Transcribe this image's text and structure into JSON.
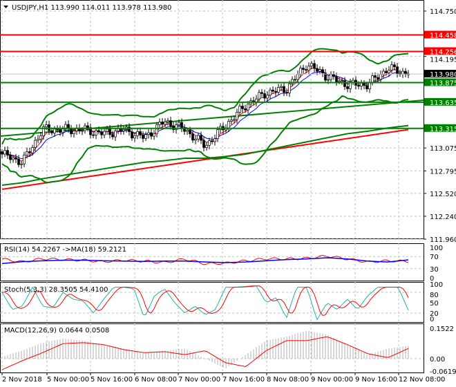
{
  "header": {
    "symbol": "USDJPY,H1",
    "ohlc": "113.990 114.011 113.978 113.980"
  },
  "chart_data": [
    {
      "type": "candlestick",
      "title": "USDJPY,H1",
      "ylim": [
        111.96,
        114.75
      ],
      "y_ticks": [
        "114.750",
        "114.195",
        "113.075",
        "112.795",
        "112.520",
        "112.240",
        "111.960"
      ],
      "x_ticks": [
        "2 Nov 2018",
        "5 Nov 00:00",
        "5 Nov 16:00",
        "6 Nov 08:00",
        "7 Nov 00:00",
        "7 Nov 16:00",
        "8 Nov 08:00",
        "9 Nov 00:00",
        "9 Nov 16:00",
        "12 Nov 08:00"
      ],
      "close_samples": [
        113.0,
        112.9,
        113.3,
        113.3,
        113.3,
        113.25,
        113.3,
        113.2,
        113.4,
        113.3,
        113.1,
        113.35,
        113.6,
        113.75,
        113.8,
        114.1,
        113.95,
        113.85,
        113.85,
        114.05,
        113.98
      ],
      "ma_green_curve": [
        112.62,
        112.65,
        112.7,
        112.74,
        112.78,
        112.82,
        112.86,
        112.9,
        112.92,
        112.95,
        112.95,
        112.97,
        113.0,
        113.05,
        113.1,
        113.15,
        113.2,
        113.25,
        113.28,
        113.32,
        113.35
      ],
      "ma_red_range": [
        112.57,
        113.3
      ],
      "trend_green_range": [
        113.22,
        113.66
      ],
      "current_price": {
        "label": "113.980",
        "color": "#000000"
      },
      "levels": [
        {
          "value": 114.458,
          "label": "114.458",
          "color": "#ff0000"
        },
        {
          "value": 114.256,
          "label": "114.256",
          "color": "#ff0000"
        },
        {
          "value": 113.875,
          "label": "113.875",
          "color": "#008000"
        },
        {
          "value": 113.635,
          "label": "113.635",
          "color": "#008000"
        },
        {
          "value": 113.315,
          "label": "113.315",
          "color": "#008000"
        }
      ]
    },
    {
      "type": "line",
      "title": "RSI(14) 54.2267  ->MA(18) 59.2121",
      "ylim": [
        0,
        100
      ],
      "y_ticks": [
        "100",
        "70",
        "30",
        "0"
      ],
      "rsi": [
        62,
        52,
        63,
        60,
        58,
        53,
        58,
        55,
        50,
        62,
        46,
        48,
        56,
        63,
        62,
        64,
        72,
        62,
        52,
        56,
        54
      ],
      "rsi_ma": [
        47,
        53,
        56,
        58,
        58,
        56,
        55,
        54,
        55,
        55,
        52,
        50,
        52,
        56,
        60,
        62,
        66,
        62,
        55,
        52,
        59
      ]
    },
    {
      "type": "line",
      "title": "Stoch(5,3,3) 28.3505 54.4100",
      "ylim": [
        0,
        100
      ],
      "y_ticks": [
        "100",
        "80",
        "50",
        "20",
        "0"
      ],
      "main": [
        80,
        30,
        40,
        95,
        40,
        35,
        80,
        60,
        55,
        20,
        60,
        95,
        95,
        90,
        5,
        70,
        90,
        50,
        20,
        40,
        15,
        30,
        95,
        95,
        97,
        100,
        50,
        65,
        5,
        95,
        95,
        0,
        50,
        30,
        60,
        30,
        70,
        95,
        95,
        95,
        28
      ]
    },
    {
      "type": "bar+line",
      "title": "MACD(12,26,9) 0.0644 0.0508",
      "ylim": [
        -0.0619,
        0.1522
      ],
      "y_ticks": [
        "0.1522",
        "0.00",
        "-0.0619"
      ],
      "histogram": [
        0.01,
        0.04,
        0.08,
        0.1,
        0.09,
        0.07,
        0.05,
        0.03,
        0.04,
        0.05,
        0.0,
        -0.05,
        0.02,
        0.09,
        0.11,
        0.14,
        0.12,
        0.07,
        0.02,
        0.05,
        0.064
      ],
      "signal": [
        -0.055,
        -0.01,
        0.03,
        0.075,
        0.08,
        0.07,
        0.045,
        0.03,
        0.035,
        0.02,
        0.04,
        -0.02,
        -0.04,
        0.04,
        0.09,
        0.09,
        0.11,
        0.07,
        0.025,
        0.005,
        0.051
      ]
    }
  ]
}
